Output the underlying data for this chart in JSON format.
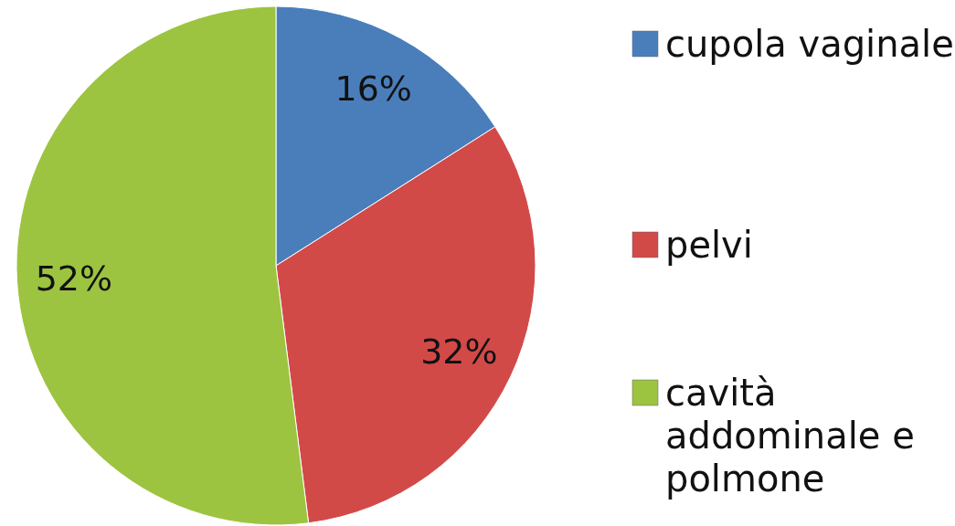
{
  "chart_data": {
    "type": "pie",
    "categories": [
      "cupola vaginale",
      "pelvi",
      "cavità addominale e polmone"
    ],
    "values": [
      16,
      32,
      52
    ],
    "colors": [
      "#4a7ebb",
      "#d24a48",
      "#9cc440"
    ],
    "value_labels": [
      "16%",
      "32%",
      "52%"
    ],
    "legend": "right"
  }
}
